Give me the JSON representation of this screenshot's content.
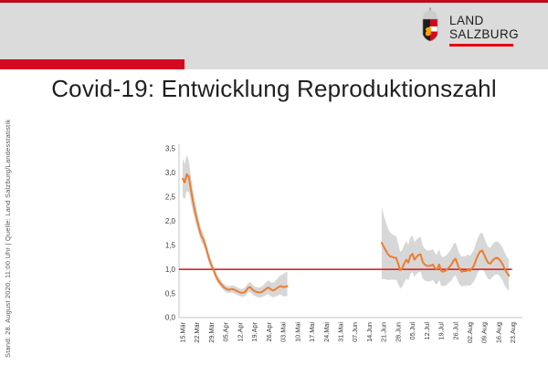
{
  "slide": {
    "top_line_color": "#c00b1f",
    "header_bg": "#dbdbdb",
    "accent_bar_color": "#d30920"
  },
  "logo": {
    "line1": "LAND",
    "line2": "SALZBURG",
    "underline_color": "#e3000f",
    "crest": {
      "crown": "#cdcdcd",
      "crown_stroke": "#969696",
      "left_field": "#1d1d1b",
      "lion": "#f0a500",
      "right_field": "#d4081c",
      "fess": "#ffffff",
      "outline": "#8a8a8a"
    }
  },
  "title": "Covid-19: Entwicklung Reproduktionszahl",
  "side_note": "Stand: 28. August 2020, 11:00 Uhr | Quelle: Land Salzburg/Landesstatistik",
  "chart_data": {
    "type": "line",
    "title": "Covid-19: Entwicklung Reproduktionszahl",
    "xlabel": "",
    "ylabel": "",
    "ylim": [
      0,
      3.5
    ],
    "grid": false,
    "legend": "none",
    "y_tick_values": [
      0,
      0.5,
      1,
      1.5,
      2,
      2.5,
      3,
      3.5
    ],
    "y_tick_labels": [
      "0,0",
      "0,5",
      "1,0",
      "1,5",
      "2,0",
      "2,5",
      "3,0",
      "3,5"
    ],
    "x_tick_labels": [
      "15.Mär",
      "22.Mär",
      "29.Mär",
      "05.Apr",
      "12.Apr",
      "19.Apr",
      "26.Apr",
      "03.Mai",
      "10.Mai",
      "17.Mai",
      "24.Mai",
      "31.Mai",
      "07.Jun",
      "14.Jun",
      "21.Jun",
      "28.Jun",
      "05.Jul",
      "12.Jul",
      "19.Jul",
      "26.Jul",
      "02.Aug",
      "09.Aug",
      "16.Aug",
      "23.Aug"
    ],
    "x_tick_day_index": [
      0,
      7,
      14,
      21,
      28,
      35,
      42,
      49,
      56,
      63,
      70,
      77,
      84,
      91,
      98,
      105,
      112,
      119,
      126,
      133,
      140,
      147,
      154,
      161
    ],
    "line_color": "#ED7D31",
    "band_color": "#d2d2d2",
    "axis_color": "#c4c4c4",
    "reference_line": {
      "value": 1.0,
      "color": "#e3231d",
      "end_day": 160.5
    },
    "point_format": [
      "day_index_from_15.Maerz",
      "R_value",
      "ci_low",
      "ci_high"
    ],
    "series": [
      {
        "name": "",
        "points": [
          [
            0,
            2.88,
            2.5,
            3.3
          ],
          [
            1,
            2.8,
            2.45,
            3.18
          ],
          [
            2,
            2.97,
            2.62,
            3.38
          ],
          [
            3,
            2.92,
            2.6,
            3.25
          ],
          [
            4,
            2.65,
            2.4,
            2.93
          ],
          [
            5,
            2.42,
            2.2,
            2.65
          ],
          [
            6,
            2.2,
            2.02,
            2.4
          ],
          [
            7,
            2.02,
            1.86,
            2.19
          ],
          [
            8,
            1.85,
            1.71,
            2.0
          ],
          [
            9,
            1.7,
            1.57,
            1.84
          ],
          [
            10,
            1.63,
            1.51,
            1.76
          ],
          [
            11,
            1.5,
            1.39,
            1.62
          ],
          [
            12,
            1.35,
            1.25,
            1.46
          ],
          [
            13,
            1.2,
            1.11,
            1.3
          ],
          [
            14,
            1.08,
            1.0,
            1.17
          ],
          [
            15,
            1.0,
            0.92,
            1.08
          ],
          [
            16,
            0.88,
            0.81,
            0.96
          ],
          [
            17,
            0.79,
            0.72,
            0.87
          ],
          [
            18,
            0.73,
            0.66,
            0.8
          ],
          [
            19,
            0.68,
            0.61,
            0.75
          ],
          [
            20,
            0.63,
            0.56,
            0.7
          ],
          [
            21,
            0.6,
            0.53,
            0.67
          ],
          [
            22,
            0.58,
            0.51,
            0.65
          ],
          [
            23,
            0.58,
            0.51,
            0.65
          ],
          [
            24,
            0.59,
            0.52,
            0.67
          ],
          [
            25,
            0.58,
            0.5,
            0.66
          ],
          [
            26,
            0.56,
            0.48,
            0.64
          ],
          [
            27,
            0.54,
            0.46,
            0.62
          ],
          [
            28,
            0.52,
            0.44,
            0.6
          ],
          [
            29,
            0.51,
            0.43,
            0.59
          ],
          [
            30,
            0.52,
            0.43,
            0.61
          ],
          [
            31,
            0.56,
            0.47,
            0.66
          ],
          [
            32,
            0.62,
            0.52,
            0.72
          ],
          [
            33,
            0.63,
            0.53,
            0.73
          ],
          [
            34,
            0.58,
            0.48,
            0.68
          ],
          [
            35,
            0.55,
            0.45,
            0.65
          ],
          [
            36,
            0.53,
            0.43,
            0.63
          ],
          [
            37,
            0.52,
            0.42,
            0.62
          ],
          [
            38,
            0.52,
            0.41,
            0.63
          ],
          [
            39,
            0.54,
            0.43,
            0.66
          ],
          [
            40,
            0.57,
            0.45,
            0.7
          ],
          [
            41,
            0.61,
            0.48,
            0.75
          ],
          [
            42,
            0.62,
            0.48,
            0.77
          ],
          [
            43,
            0.58,
            0.44,
            0.73
          ],
          [
            44,
            0.56,
            0.42,
            0.72
          ],
          [
            45,
            0.58,
            0.43,
            0.75
          ],
          [
            46,
            0.61,
            0.45,
            0.8
          ],
          [
            47,
            0.64,
            0.47,
            0.85
          ],
          [
            48,
            0.65,
            0.47,
            0.88
          ],
          [
            49,
            0.63,
            0.44,
            0.9
          ],
          [
            50,
            0.64,
            0.44,
            0.93
          ],
          [
            51,
            0.65,
            0.45,
            0.95
          ]
        ]
      },
      {
        "name": "",
        "points": [
          [
            97,
            1.55,
            0.8,
            2.3
          ],
          [
            98,
            1.47,
            0.8,
            2.12
          ],
          [
            99,
            1.39,
            0.79,
            1.98
          ],
          [
            100,
            1.32,
            0.78,
            1.86
          ],
          [
            101,
            1.27,
            0.78,
            1.77
          ],
          [
            102,
            1.26,
            0.79,
            1.73
          ],
          [
            103,
            1.24,
            0.78,
            1.7
          ],
          [
            104,
            1.24,
            0.79,
            1.69
          ],
          [
            105,
            1.12,
            0.7,
            1.54
          ],
          [
            106,
            0.98,
            0.6,
            1.36
          ],
          [
            107,
            1.02,
            0.64,
            1.4
          ],
          [
            108,
            1.12,
            0.73,
            1.51
          ],
          [
            109,
            1.2,
            0.81,
            1.59
          ],
          [
            110,
            1.14,
            0.77,
            1.51
          ],
          [
            111,
            1.28,
            0.9,
            1.66
          ],
          [
            112,
            1.32,
            0.94,
            1.7
          ],
          [
            113,
            1.2,
            0.84,
            1.56
          ],
          [
            114,
            1.26,
            0.9,
            1.62
          ],
          [
            115,
            1.3,
            0.94,
            1.66
          ],
          [
            116,
            1.31,
            0.95,
            1.67
          ],
          [
            117,
            1.15,
            0.81,
            1.49
          ],
          [
            118,
            1.1,
            0.77,
            1.43
          ],
          [
            119,
            1.07,
            0.75,
            1.39
          ],
          [
            120,
            1.07,
            0.75,
            1.39
          ],
          [
            121,
            1.08,
            0.76,
            1.4
          ],
          [
            122,
            1.1,
            0.78,
            1.42
          ],
          [
            123,
            1.02,
            0.71,
            1.33
          ],
          [
            124,
            1.0,
            0.69,
            1.31
          ],
          [
            125,
            1.1,
            0.78,
            1.42
          ],
          [
            126,
            0.97,
            0.66,
            1.28
          ],
          [
            127,
            0.95,
            0.65,
            1.25
          ],
          [
            128,
            0.97,
            0.66,
            1.28
          ],
          [
            129,
            1.0,
            0.69,
            1.31
          ],
          [
            130,
            1.05,
            0.73,
            1.37
          ],
          [
            131,
            1.1,
            0.77,
            1.43
          ],
          [
            132,
            1.18,
            0.84,
            1.52
          ],
          [
            133,
            1.22,
            0.88,
            1.56
          ],
          [
            134,
            1.1,
            0.77,
            1.43
          ],
          [
            135,
            1.0,
            0.68,
            1.32
          ],
          [
            136,
            0.95,
            0.64,
            1.26
          ],
          [
            137,
            0.97,
            0.66,
            1.28
          ],
          [
            138,
            0.96,
            0.65,
            1.27
          ],
          [
            139,
            0.99,
            0.67,
            1.31
          ],
          [
            140,
            0.97,
            0.66,
            1.28
          ],
          [
            141,
            1.02,
            0.7,
            1.34
          ],
          [
            142,
            1.08,
            0.75,
            1.41
          ],
          [
            143,
            1.2,
            0.85,
            1.55
          ],
          [
            144,
            1.3,
            0.94,
            1.66
          ],
          [
            145,
            1.37,
            1.0,
            1.74
          ],
          [
            146,
            1.39,
            1.02,
            1.76
          ],
          [
            147,
            1.3,
            0.95,
            1.65
          ],
          [
            148,
            1.2,
            0.86,
            1.54
          ],
          [
            149,
            1.13,
            0.8,
            1.46
          ],
          [
            150,
            1.12,
            0.79,
            1.45
          ],
          [
            151,
            1.18,
            0.84,
            1.52
          ],
          [
            152,
            1.22,
            0.88,
            1.56
          ],
          [
            153,
            1.24,
            0.9,
            1.58
          ],
          [
            154,
            1.22,
            0.88,
            1.56
          ],
          [
            155,
            1.17,
            0.83,
            1.51
          ],
          [
            156,
            1.1,
            0.76,
            1.44
          ],
          [
            157,
            1.0,
            0.66,
            1.34
          ],
          [
            158,
            0.93,
            0.6,
            1.26
          ],
          [
            159,
            0.87,
            0.55,
            1.2
          ]
        ]
      }
    ]
  }
}
